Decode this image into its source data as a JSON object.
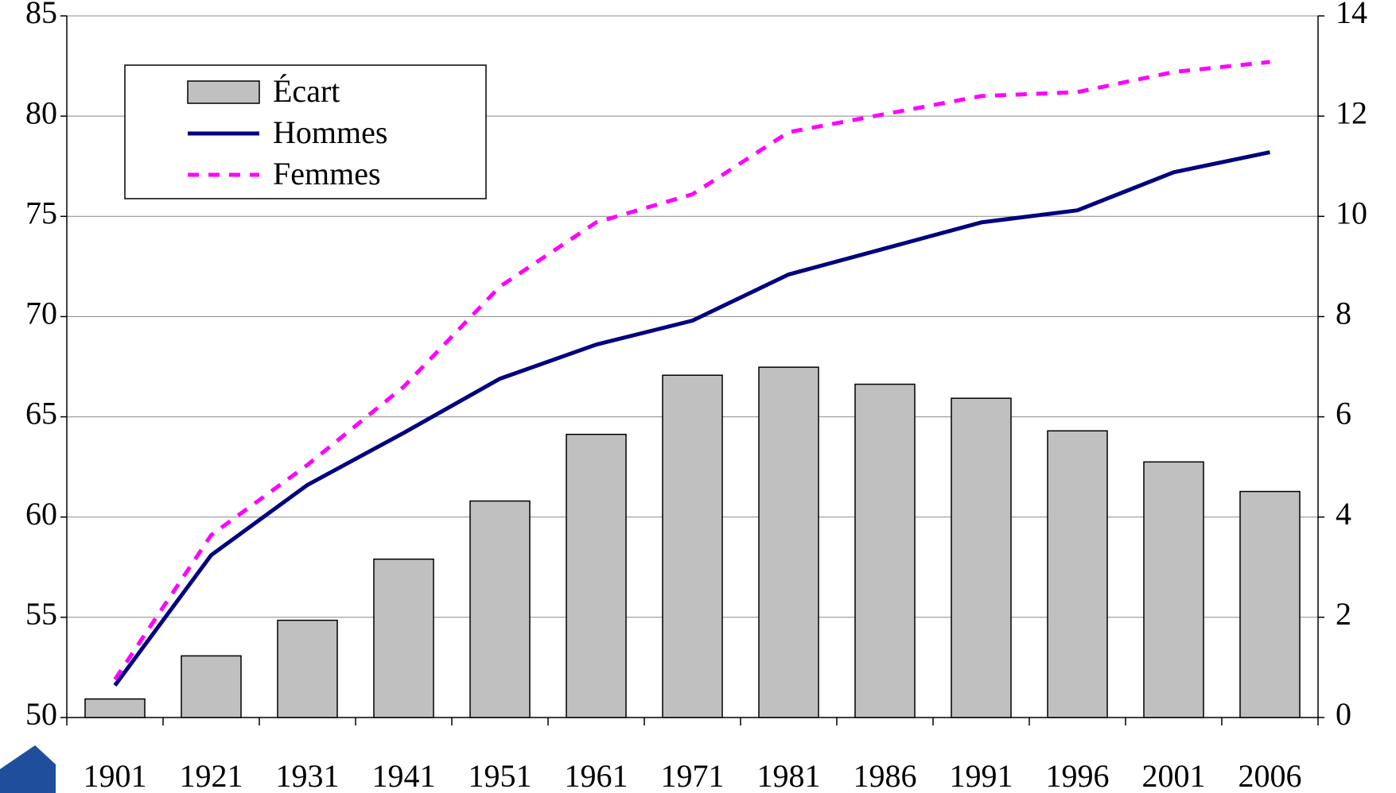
{
  "chart_data": {
    "type": "bar",
    "categories": [
      "1901",
      "1921",
      "1931",
      "1941",
      "1951",
      "1961",
      "1971",
      "1981",
      "1986",
      "1991",
      "1996",
      "2001",
      "2006"
    ],
    "series": [
      {
        "name": "Écart",
        "type": "bar",
        "axis": "y2",
        "color": "#c0c0c0",
        "values": [
          0.37,
          1.23,
          1.94,
          3.16,
          4.32,
          5.65,
          6.83,
          6.99,
          6.65,
          6.37,
          5.72,
          5.1,
          4.51
        ]
      },
      {
        "name": "Hommes",
        "type": "line",
        "color": "#000080",
        "line_style": "solid",
        "values": [
          51.6,
          58.1,
          61.6,
          64.2,
          66.9,
          68.6,
          69.8,
          72.1,
          73.4,
          74.7,
          75.3,
          77.2,
          78.2
        ]
      },
      {
        "name": "Femmes",
        "type": "line",
        "color": "#ff00ff",
        "line_style": "dashed",
        "values": [
          51.9,
          59.1,
          62.6,
          66.5,
          71.5,
          74.7,
          76.1,
          79.2,
          80.1,
          81.0,
          81.2,
          82.2,
          82.7
        ]
      }
    ],
    "ylim": [
      50,
      85
    ],
    "yticks": [
      50,
      55,
      60,
      65,
      70,
      75,
      80,
      85
    ],
    "y2lim": [
      0,
      14
    ],
    "y2ticks": [
      0,
      2,
      4,
      6,
      8,
      10,
      12,
      14
    ],
    "grid": true,
    "legend": "top-left"
  }
}
